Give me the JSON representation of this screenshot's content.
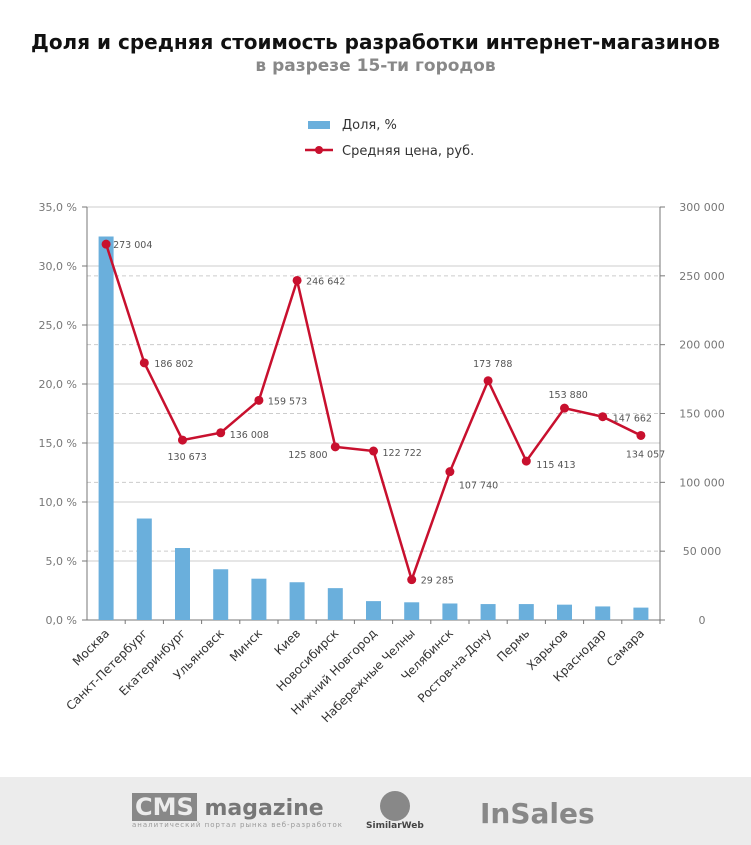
{
  "chart_data": {
    "type": "bar+line",
    "title": "Доля и средняя стоимость разработки интернет-магазинов",
    "subtitle": "в разрезе 15-ти городов",
    "categories": [
      "Москва",
      "Санкт-Петербург",
      "Екатеринбург",
      "Ульяновск",
      "Минск",
      "Киев",
      "Новосибирск",
      "Нижний Новгород",
      "Набережные Челны",
      "Челябинск",
      "Ростов-на-Дону",
      "Пермь",
      "Харьков",
      "Краснодар",
      "Самара"
    ],
    "series": [
      {
        "name": "Доля, %",
        "type": "bar",
        "axis": "left",
        "color": "#6aafdc",
        "values": [
          32.5,
          8.6,
          6.1,
          4.3,
          3.5,
          3.2,
          2.7,
          1.6,
          1.5,
          1.4,
          1.35,
          1.35,
          1.3,
          1.15,
          1.05
        ]
      },
      {
        "name": "Средняя цена, руб.",
        "type": "line",
        "axis": "right",
        "color": "#c8102e",
        "values": [
          273004,
          186802,
          130673,
          136008,
          159573,
          246642,
          125800,
          122722,
          29285,
          107740,
          173788,
          115413,
          153880,
          147662,
          134057
        ],
        "labels": [
          "273 004",
          "186 802",
          "130 673",
          "136 008",
          "159 573",
          "246 642",
          "125 800",
          "122 722",
          "29 285",
          "107 740",
          "173 788",
          "115 413",
          "153 880",
          "147 662",
          "134 057"
        ]
      }
    ],
    "left_axis": {
      "ylim": [
        0,
        35
      ],
      "ticks": [
        "0,0 %",
        "5,0 %",
        "10,0 %",
        "15,0 %",
        "20,0 %",
        "25,0 %",
        "30,0 %",
        "35,0 %"
      ]
    },
    "right_axis": {
      "ylim": [
        0,
        300000
      ],
      "ticks": [
        "0",
        "50 000",
        "100 000",
        "150 000",
        "200 000",
        "250 000",
        "300 000"
      ]
    },
    "grid": true,
    "legend": "top-center"
  },
  "footer": {
    "logos": [
      "CMS magazine",
      "SimilarWeb",
      "InSales"
    ],
    "cms_tagline": "аналитический портал рынка веб-разработок"
  }
}
